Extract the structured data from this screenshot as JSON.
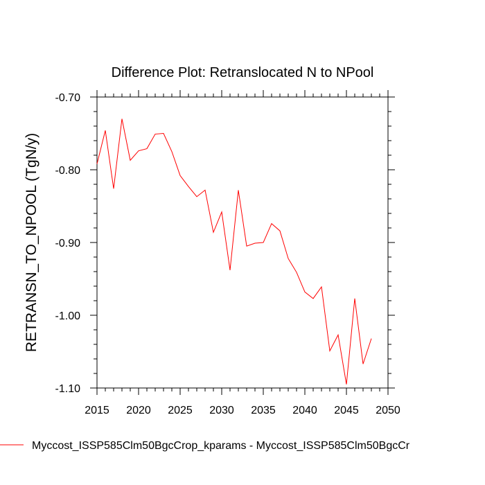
{
  "chart_data": {
    "type": "line",
    "title": "Difference Plot: Retranslocated N to NPool",
    "xlabel": "",
    "ylabel": "RETRANSN_TO_NPOOL  (TgN/y)",
    "xlim": [
      2015,
      2050
    ],
    "ylim": [
      -1.1,
      -0.7
    ],
    "x_ticks": [
      "2015",
      "2020",
      "2025",
      "2030",
      "2035",
      "2040",
      "2045",
      "2050"
    ],
    "y_ticks": [
      "-0.70",
      "-0.80",
      "-0.90",
      "-1.00",
      "-1.10"
    ],
    "grid": false,
    "legend_position": "bottom-left",
    "series": [
      {
        "name": "Myccost_ISSP585Clm50BgcCrop_kparams - Myccost_ISSP585Clm50BgcCr",
        "color": "#ff0000",
        "x": [
          2015,
          2016,
          2017,
          2018,
          2019,
          2020,
          2021,
          2022,
          2023,
          2024,
          2025,
          2026,
          2027,
          2028,
          2029,
          2030,
          2031,
          2032,
          2033,
          2034,
          2035,
          2036,
          2037,
          2038,
          2039,
          2040,
          2041,
          2042,
          2043,
          2044,
          2045,
          2046,
          2047,
          2048
        ],
        "values": [
          -0.792,
          -0.746,
          -0.826,
          -0.73,
          -0.787,
          -0.774,
          -0.771,
          -0.751,
          -0.75,
          -0.775,
          -0.808,
          -0.823,
          -0.837,
          -0.828,
          -0.886,
          -0.858,
          -0.938,
          -0.828,
          -0.905,
          -0.901,
          -0.9,
          -0.874,
          -0.884,
          -0.922,
          -0.941,
          -0.968,
          -0.977,
          -0.961,
          -1.049,
          -1.027,
          -1.095,
          -0.977,
          -1.067,
          -1.032
        ]
      }
    ]
  }
}
